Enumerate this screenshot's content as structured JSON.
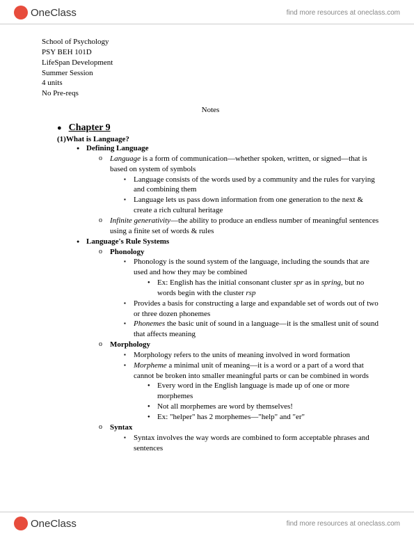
{
  "header": {
    "logo_text": "OneClass",
    "link_text": "find more resources at oneclass.com"
  },
  "course": {
    "school": "School of Psychology",
    "code": "PSY BEH 101D",
    "title": "LifeSpan Development",
    "session": "Summer Session",
    "units": "4 units",
    "prereqs": "No Pre-reqs"
  },
  "notes_label": "Notes",
  "chapter": "Chapter 9",
  "section1": {
    "num": "(1)",
    "title": "What is Language?",
    "sub1": {
      "title": "Defining Language",
      "a": {
        "pre": "Language",
        "post": " is a form of communication—whether spoken, written, or signed—that is based on system of symbols"
      },
      "a_children": [
        "Language consists of the words used by a community and the rules for varying and combining them",
        "Language lets us pass down information from one generation to the next & create a rich cultural heritage"
      ],
      "b": {
        "pre": "Infinite generativity",
        "post": "—the ability to produce an endless number of meaningful sentences using a finite set of words & rules"
      }
    },
    "sub2": {
      "title": "Language's Rule Systems",
      "phon": {
        "title": "Phonology",
        "a": "Phonology is the sound system of the language, including the sounds that are used and how they may be combined",
        "a_ex": {
          "pre": "Ex: English has the initial consonant cluster ",
          "it1": "spr",
          "mid": " as in ",
          "it2": "spring",
          "post": ", but no words begin with the cluster ",
          "it3": "rsp"
        },
        "b": "Provides a basis for constructing a large and expandable set of words out of two or three dozen phonemes",
        "c": {
          "pre": "Phonemes",
          "post": "  the basic unit of sound in a language—it is the smallest unit of sound that affects meaning"
        }
      },
      "morph": {
        "title": "Morphology",
        "a": "Morphology refers to the units of meaning involved in word formation",
        "b": {
          "pre": "Morpheme",
          "post": "  a minimal unit of meaning—it is a word or a part of a word that cannot be broken into smaller meaningful parts or can be combined in words"
        },
        "b_children": [
          "Every word in the English language is made up of one or more morphemes",
          "Not all morphemes are word by themselves!",
          "Ex: \"helper\" has 2 morphemes—\"help\" and \"er\""
        ]
      },
      "syntax": {
        "title": "Syntax",
        "a": "Syntax involves the way words are combined to form acceptable phrases and sentences"
      }
    }
  },
  "footer": {
    "logo_text": "OneClass",
    "link_text": "find more resources at oneclass.com"
  }
}
